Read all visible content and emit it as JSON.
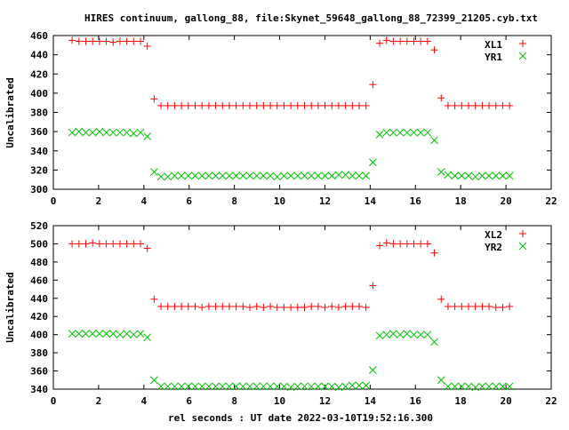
{
  "chart_data": [
    {
      "type": "scatter",
      "title": "HIRES continuum, gallong_88, file:Skynet_59648_gallong_88_72399_21205.cyb.txt",
      "ylabel": "Uncalibrated",
      "xlabel": "",
      "xlim": [
        0,
        22
      ],
      "ylim": [
        300,
        460
      ],
      "xticks": [
        "0",
        "2",
        "4",
        "6",
        "8",
        "10",
        "12",
        "14",
        "16",
        "18",
        "20",
        "22"
      ],
      "yticks": [
        "300",
        "320",
        "340",
        "360",
        "380",
        "400",
        "420",
        "440",
        "460"
      ],
      "legend_position": "top-right",
      "x": {
        "start": 0.83,
        "step": 0.302,
        "count": 65
      },
      "series": [
        {
          "name": "XL1",
          "color": "#ff0000",
          "marker": "plus",
          "values": [
            455,
            454,
            454,
            454,
            454,
            454,
            453,
            454,
            454,
            454,
            454,
            449,
            394,
            387,
            387,
            387,
            387,
            387,
            387,
            387,
            387,
            387,
            387,
            387,
            387,
            387,
            387,
            387,
            387,
            387,
            387,
            387,
            387,
            387,
            387,
            387,
            387,
            387,
            387,
            387,
            387,
            387,
            387,
            387,
            409,
            452,
            455,
            454,
            454,
            454,
            454,
            454,
            454,
            445,
            395,
            387,
            387,
            387,
            387,
            387,
            387,
            387,
            387,
            387,
            387
          ]
        },
        {
          "name": "YR1",
          "color": "#00c000",
          "marker": "cross",
          "values": [
            359,
            360,
            359,
            359,
            360,
            359,
            359,
            359,
            359,
            358,
            359,
            355,
            318,
            313,
            313,
            314,
            314,
            314,
            314,
            314,
            314,
            314,
            314,
            314,
            314,
            314,
            314,
            314,
            314,
            314,
            313,
            314,
            314,
            314,
            314,
            314,
            314,
            314,
            314,
            315,
            315,
            314,
            314,
            314,
            328,
            357,
            359,
            359,
            359,
            359,
            359,
            359,
            359,
            351,
            318,
            315,
            314,
            314,
            314,
            313,
            314,
            314,
            314,
            314,
            314
          ]
        }
      ]
    },
    {
      "type": "scatter",
      "title": "",
      "ylabel": "Uncalibrated",
      "xlabel": "rel seconds : UT date 2022-03-10T19:52:16.300",
      "xlim": [
        0,
        22
      ],
      "ylim": [
        340,
        520
      ],
      "xticks": [
        "0",
        "2",
        "4",
        "6",
        "8",
        "10",
        "12",
        "14",
        "16",
        "18",
        "20",
        "22"
      ],
      "yticks": [
        "340",
        "360",
        "380",
        "400",
        "420",
        "440",
        "460",
        "480",
        "500",
        "520"
      ],
      "legend_position": "top-right",
      "x": {
        "start": 0.83,
        "step": 0.302,
        "count": 65
      },
      "series": [
        {
          "name": "XL2",
          "color": "#ff0000",
          "marker": "plus",
          "values": [
            500,
            500,
            500,
            501,
            500,
            500,
            500,
            500,
            500,
            500,
            500,
            495,
            439,
            431,
            431,
            431,
            431,
            431,
            431,
            430,
            431,
            431,
            431,
            431,
            431,
            431,
            430,
            431,
            430,
            431,
            430,
            430,
            430,
            430,
            430,
            431,
            431,
            430,
            431,
            430,
            431,
            431,
            431,
            430,
            454,
            498,
            501,
            500,
            500,
            500,
            500,
            500,
            500,
            490,
            439,
            431,
            431,
            431,
            431,
            431,
            431,
            431,
            430,
            430,
            431
          ]
        },
        {
          "name": "YR2",
          "color": "#00c000",
          "marker": "cross",
          "values": [
            401,
            401,
            401,
            401,
            401,
            401,
            401,
            400,
            401,
            400,
            401,
            397,
            350,
            343,
            343,
            343,
            343,
            343,
            343,
            343,
            343,
            343,
            343,
            343,
            343,
            343,
            343,
            343,
            343,
            343,
            343,
            343,
            342,
            343,
            343,
            343,
            343,
            343,
            343,
            342,
            343,
            344,
            344,
            344,
            361,
            399,
            400,
            401,
            400,
            401,
            400,
            400,
            400,
            392,
            350,
            343,
            343,
            343,
            343,
            342,
            343,
            343,
            343,
            343,
            343
          ]
        }
      ]
    }
  ]
}
